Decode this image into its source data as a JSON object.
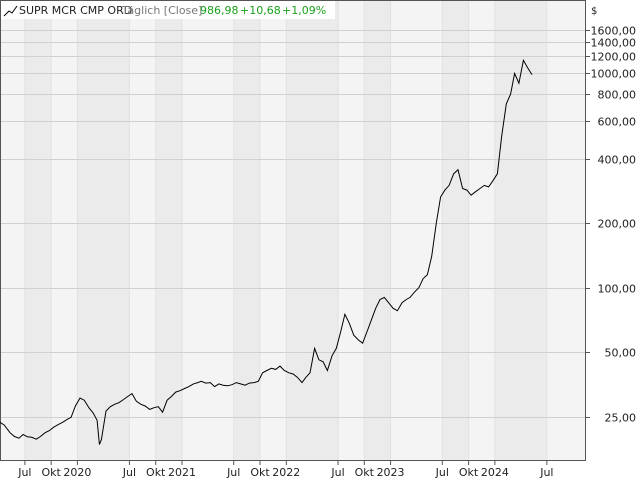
{
  "header": {
    "instrument": "SUPR MCR CMP ORD",
    "interval": "Täglich [Close]",
    "last_price": "986,98",
    "change_abs": "+10,68",
    "change_pct": "+1,09%",
    "currency": "$",
    "positive_color": "#1aa01a"
  },
  "chart_data": {
    "type": "line",
    "title": "",
    "yscale": "log",
    "ylim": [
      15.5,
      2200
    ],
    "xlim": [
      "2019-04-05",
      "2024-11-15"
    ],
    "grid": true,
    "legend": "none",
    "line_color": "#000000",
    "yticks": [
      {
        "value": 25,
        "label": "25,00"
      },
      {
        "value": 50,
        "label": "50,00"
      },
      {
        "value": 100,
        "label": "100,00"
      },
      {
        "value": 200,
        "label": "200,00"
      },
      {
        "value": 400,
        "label": "400,00"
      },
      {
        "value": 600,
        "label": "600,00"
      },
      {
        "value": 800,
        "label": "800,00"
      },
      {
        "value": 1000,
        "label": "1000,00"
      },
      {
        "value": 1200,
        "label": "1200,00"
      },
      {
        "value": 1400,
        "label": "1400,00"
      },
      {
        "value": 1600,
        "label": "1600,00"
      }
    ],
    "xticks": [
      {
        "date": "2019-07-01",
        "label": "Jul"
      },
      {
        "date": "2019-10-01",
        "label": "Okt"
      },
      {
        "date": "2020-01-01",
        "label": "2020"
      },
      {
        "date": "2020-07-01",
        "label": "Jul"
      },
      {
        "date": "2020-10-01",
        "label": "Okt"
      },
      {
        "date": "2021-01-01",
        "label": "2021"
      },
      {
        "date": "2021-07-01",
        "label": "Jul"
      },
      {
        "date": "2021-10-01",
        "label": "Okt"
      },
      {
        "date": "2022-01-01",
        "label": "2022"
      },
      {
        "date": "2022-07-01",
        "label": "Jul"
      },
      {
        "date": "2022-10-01",
        "label": "Okt"
      },
      {
        "date": "2023-01-01",
        "label": "2023"
      },
      {
        "date": "2023-07-01",
        "label": "Jul"
      },
      {
        "date": "2023-10-01",
        "label": "Okt"
      },
      {
        "date": "2024-01-01",
        "label": "2024"
      },
      {
        "date": "2024-07-01",
        "label": "Jul"
      }
    ],
    "series": [
      {
        "x": [
          "2019-04-05",
          "2019-04-20",
          "2019-05-10",
          "2019-05-25",
          "2019-06-10",
          "2019-06-25",
          "2019-07-10",
          "2019-07-25",
          "2019-08-10",
          "2019-08-25",
          "2019-09-10",
          "2019-09-25",
          "2019-10-10",
          "2019-10-25",
          "2019-11-10",
          "2019-11-25",
          "2019-12-10",
          "2019-12-25",
          "2020-01-10",
          "2020-01-25",
          "2020-02-10",
          "2020-02-25",
          "2020-03-10",
          "2020-03-18",
          "2020-03-25",
          "2020-04-10",
          "2020-04-25",
          "2020-05-10",
          "2020-05-25",
          "2020-06-10",
          "2020-06-25",
          "2020-07-10",
          "2020-07-25",
          "2020-08-10",
          "2020-08-25",
          "2020-09-10",
          "2020-09-25",
          "2020-10-10",
          "2020-10-25",
          "2020-11-10",
          "2020-11-25",
          "2020-12-10",
          "2020-12-25",
          "2021-01-10",
          "2021-01-25",
          "2021-02-10",
          "2021-02-25",
          "2021-03-10",
          "2021-03-25",
          "2021-04-10",
          "2021-04-25",
          "2021-05-10",
          "2021-05-25",
          "2021-06-10",
          "2021-06-25",
          "2021-07-10",
          "2021-07-25",
          "2021-08-10",
          "2021-08-25",
          "2021-09-10",
          "2021-09-25",
          "2021-10-10",
          "2021-10-25",
          "2021-11-10",
          "2021-11-25",
          "2021-12-10",
          "2021-12-25",
          "2022-01-10",
          "2022-01-25",
          "2022-02-10",
          "2022-02-25",
          "2022-03-10",
          "2022-03-25",
          "2022-04-10",
          "2022-04-25",
          "2022-05-10",
          "2022-05-25",
          "2022-06-10",
          "2022-06-25",
          "2022-07-10",
          "2022-07-25",
          "2022-08-10",
          "2022-08-25",
          "2022-09-10",
          "2022-09-25",
          "2022-10-10",
          "2022-10-25",
          "2022-11-10",
          "2022-11-25",
          "2022-12-10",
          "2022-12-25",
          "2023-01-10",
          "2023-01-25",
          "2023-02-10",
          "2023-02-25",
          "2023-03-10",
          "2023-03-25",
          "2023-04-10",
          "2023-04-25",
          "2023-05-10",
          "2023-05-25",
          "2023-06-10",
          "2023-06-25",
          "2023-07-10",
          "2023-07-25",
          "2023-08-10",
          "2023-08-25",
          "2023-09-10",
          "2023-09-25",
          "2023-10-10",
          "2023-10-25",
          "2023-11-10",
          "2023-11-25",
          "2023-12-10",
          "2023-12-25",
          "2024-01-10",
          "2024-01-25",
          "2024-02-10",
          "2024-02-25",
          "2024-03-10",
          "2024-03-25",
          "2024-04-10",
          "2024-04-25",
          "2024-05-10"
        ],
        "y": [
          23.5,
          22.8,
          21.0,
          20.2,
          19.8,
          20.6,
          20.1,
          20.0,
          19.6,
          20.2,
          21.0,
          21.5,
          22.3,
          22.9,
          23.5,
          24.2,
          24.8,
          28.0,
          30.5,
          29.8,
          27.5,
          26.0,
          24.0,
          18.5,
          19.5,
          26.5,
          27.8,
          28.5,
          29.0,
          30.0,
          31.0,
          32.0,
          29.5,
          28.5,
          28.0,
          27.0,
          27.5,
          27.8,
          26.2,
          29.8,
          31.0,
          32.5,
          33.0,
          33.8,
          34.5,
          35.5,
          36.0,
          36.5,
          35.8,
          36.0,
          34.5,
          35.5,
          35.0,
          34.8,
          35.2,
          36.0,
          35.5,
          35.0,
          35.8,
          36.0,
          36.5,
          40.0,
          41.0,
          42.0,
          41.5,
          43.0,
          41.0,
          40.0,
          39.5,
          38.0,
          36.0,
          38.0,
          40.0,
          52.0,
          46.0,
          45.0,
          41.0,
          48.0,
          52.0,
          62.0,
          75.0,
          68.0,
          60.0,
          57.0,
          55.0,
          62.0,
          70.0,
          80.0,
          88.0,
          90.0,
          85.0,
          80.0,
          78.0,
          85.0,
          88.0,
          90.0,
          95.0,
          100.0,
          110.0,
          115.0,
          140.0,
          200.0,
          265.0,
          285.0,
          300.0,
          340.0,
          355.0,
          290.0,
          285.0,
          270.0,
          280.0,
          290.0,
          300.0,
          295.0,
          315.0,
          340.0,
          510.0,
          720.0,
          800.0,
          1000.0,
          900.0,
          1150.0,
          1060.0,
          987.0
        ]
      }
    ]
  }
}
